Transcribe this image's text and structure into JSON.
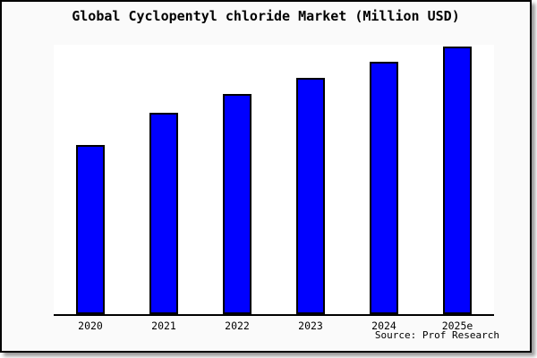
{
  "chart_data": {
    "type": "bar",
    "title": "Global Cyclopentyl chloride Market (Million USD)",
    "categories": [
      "2020",
      "2021",
      "2022",
      "2023",
      "2024",
      "2025e"
    ],
    "values": [
      63,
      75,
      82,
      88,
      94,
      100
    ],
    "value_note": "relative scale estimated from bar heights; y-axis has no tick labels in source image",
    "xlabel": "",
    "ylabel": "",
    "ylim": [
      0,
      100.5
    ],
    "grid": false,
    "legend": "none",
    "bar_color": "#0000ff",
    "bar_border_color": "#000000",
    "source": "Source: Prof Research"
  },
  "colors": {
    "frame_background": "#fafafa",
    "plot_background": "#ffffff",
    "frame_border": "#000000",
    "axis": "#000000",
    "text": "#000000",
    "bar_fill": "#0000ff",
    "bar_outline": "#000000",
    "shadow": "#999999"
  }
}
